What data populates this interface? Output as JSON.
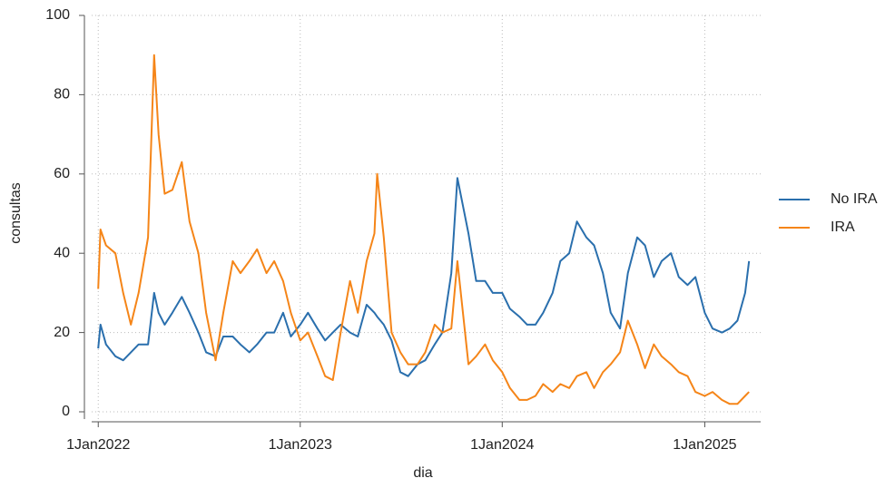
{
  "chart_data": {
    "type": "line",
    "x_label": "dia",
    "y_label": "consultas",
    "x": [
      "2022-01-01",
      "2022-01-05",
      "2022-01-15",
      "2022-02-01",
      "2022-02-15",
      "2022-03-01",
      "2022-03-15",
      "2022-04-01",
      "2022-04-12",
      "2022-04-20",
      "2022-05-01",
      "2022-05-15",
      "2022-06-01",
      "2022-06-15",
      "2022-07-01",
      "2022-07-15",
      "2022-08-01",
      "2022-08-15",
      "2022-09-01",
      "2022-09-15",
      "2022-10-01",
      "2022-10-15",
      "2022-11-01",
      "2022-11-15",
      "2022-12-01",
      "2022-12-15",
      "2023-01-01",
      "2023-01-15",
      "2023-02-01",
      "2023-02-15",
      "2023-03-01",
      "2023-03-15",
      "2023-04-01",
      "2023-04-15",
      "2023-05-01",
      "2023-05-15",
      "2023-05-20",
      "2023-06-01",
      "2023-06-15",
      "2023-07-01",
      "2023-07-15",
      "2023-08-01",
      "2023-08-15",
      "2023-09-01",
      "2023-09-15",
      "2023-10-01",
      "2023-10-12",
      "2023-11-01",
      "2023-11-15",
      "2023-12-01",
      "2023-12-15",
      "2024-01-01",
      "2024-01-15",
      "2024-02-01",
      "2024-02-15",
      "2024-03-01",
      "2024-03-15",
      "2024-04-01",
      "2024-04-15",
      "2024-05-01",
      "2024-05-15",
      "2024-06-01",
      "2024-06-15",
      "2024-07-01",
      "2024-07-15",
      "2024-08-01",
      "2024-08-15",
      "2024-09-01",
      "2024-09-15",
      "2024-10-01",
      "2024-10-15",
      "2024-11-01",
      "2024-11-15",
      "2024-12-01",
      "2024-12-15",
      "2025-01-01",
      "2025-01-15",
      "2025-02-01",
      "2025-02-15",
      "2025-03-01",
      "2025-03-15",
      "2025-03-22"
    ],
    "series": [
      {
        "name": "No IRA",
        "color": "#2a6fad",
        "values": [
          16,
          22,
          17,
          14,
          13,
          15,
          17,
          17,
          30,
          25,
          22,
          25,
          29,
          25,
          20,
          15,
          14,
          19,
          19,
          17,
          15,
          17,
          20,
          20,
          25,
          19,
          22,
          25,
          21,
          18,
          20,
          22,
          20,
          19,
          27,
          25,
          24,
          22,
          18,
          10,
          9,
          12,
          13,
          17,
          20,
          35,
          59,
          45,
          33,
          33,
          30,
          30,
          26,
          24,
          22,
          22,
          25,
          30,
          38,
          40,
          48,
          44,
          42,
          35,
          25,
          21,
          35,
          44,
          42,
          34,
          38,
          40,
          34,
          32,
          34,
          25,
          21,
          20,
          21,
          23,
          30,
          38
        ]
      },
      {
        "name": "IRA",
        "color": "#f58518",
        "values": [
          31,
          46,
          42,
          40,
          30,
          22,
          30,
          44,
          90,
          70,
          55,
          56,
          63,
          48,
          40,
          25,
          13,
          25,
          38,
          35,
          38,
          41,
          35,
          38,
          33,
          25,
          18,
          20,
          14,
          9,
          8,
          20,
          33,
          25,
          38,
          45,
          60,
          44,
          20,
          15,
          12,
          12,
          15,
          22,
          20,
          21,
          38,
          12,
          14,
          17,
          13,
          10,
          6,
          3,
          3,
          4,
          7,
          5,
          7,
          6,
          9,
          10,
          6,
          10,
          12,
          15,
          23,
          17,
          11,
          17,
          14,
          12,
          10,
          9,
          5,
          4,
          5,
          3,
          2,
          2,
          4,
          5
        ]
      }
    ],
    "xlim": [
      "2021-12-07",
      "2025-04-12"
    ],
    "xticks": [
      {
        "value": "2022-01-01",
        "label": "1Jan2022"
      },
      {
        "value": "2023-01-01",
        "label": "1Jan2023"
      },
      {
        "value": "2024-01-01",
        "label": "1Jan2024"
      },
      {
        "value": "2025-01-01",
        "label": "1Jan2025"
      }
    ],
    "ylim": [
      0,
      100
    ],
    "yticks": [
      0,
      20,
      40,
      60,
      80,
      100
    ],
    "grid": true,
    "legend": "right"
  }
}
